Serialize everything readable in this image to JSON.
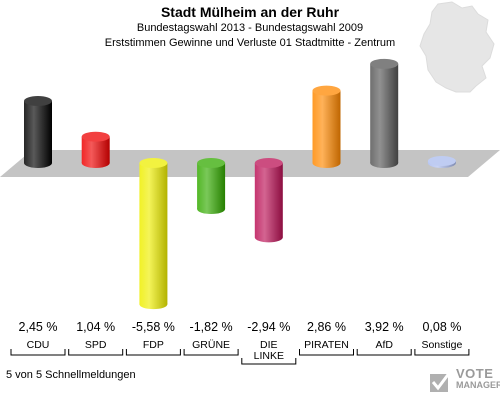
{
  "header": {
    "title": "Stadt Mülheim an der Ruhr",
    "subtitle1": "Bundestagswahl 2013 - Bundestagswahl 2009",
    "subtitle2": "Erststimmen Gewinne und Verluste 01 Stadtmitte - Zentrum"
  },
  "footer": {
    "status": "5 von 5 Schnellmeldungen",
    "brand_line1": "VOTE",
    "brand_line2": "MANAGER"
  },
  "chart_data": {
    "type": "bar",
    "title": "Erststimmen Gewinne und Verluste 01 Stadtmitte - Zentrum",
    "categories": [
      "CDU",
      "SPD",
      "FDP",
      "GRÜNE",
      "DIE LINKE",
      "PIRATEN",
      "AfD",
      "Sonstige"
    ],
    "category_lines": [
      [
        "CDU"
      ],
      [
        "SPD"
      ],
      [
        "FDP"
      ],
      [
        "GRÜNE"
      ],
      [
        "DIE",
        "LINKE"
      ],
      [
        "PIRATEN"
      ],
      [
        "AfD"
      ],
      [
        "Sonstige"
      ]
    ],
    "values": [
      2.45,
      1.04,
      -5.58,
      -1.82,
      -2.94,
      2.86,
      3.92,
      0.08
    ],
    "value_labels": [
      "2,45 %",
      "1,04 %",
      "-5,58 %",
      "-1,82 %",
      "-2,94 %",
      "2,86 %",
      "3,92 %",
      "0,08 %"
    ],
    "colors": [
      "#000000",
      "#ee0000",
      "#eeee00",
      "#33aa00",
      "#bb1155",
      "#ff8800",
      "#555555",
      "#aabbee"
    ],
    "baseline": 0
  }
}
